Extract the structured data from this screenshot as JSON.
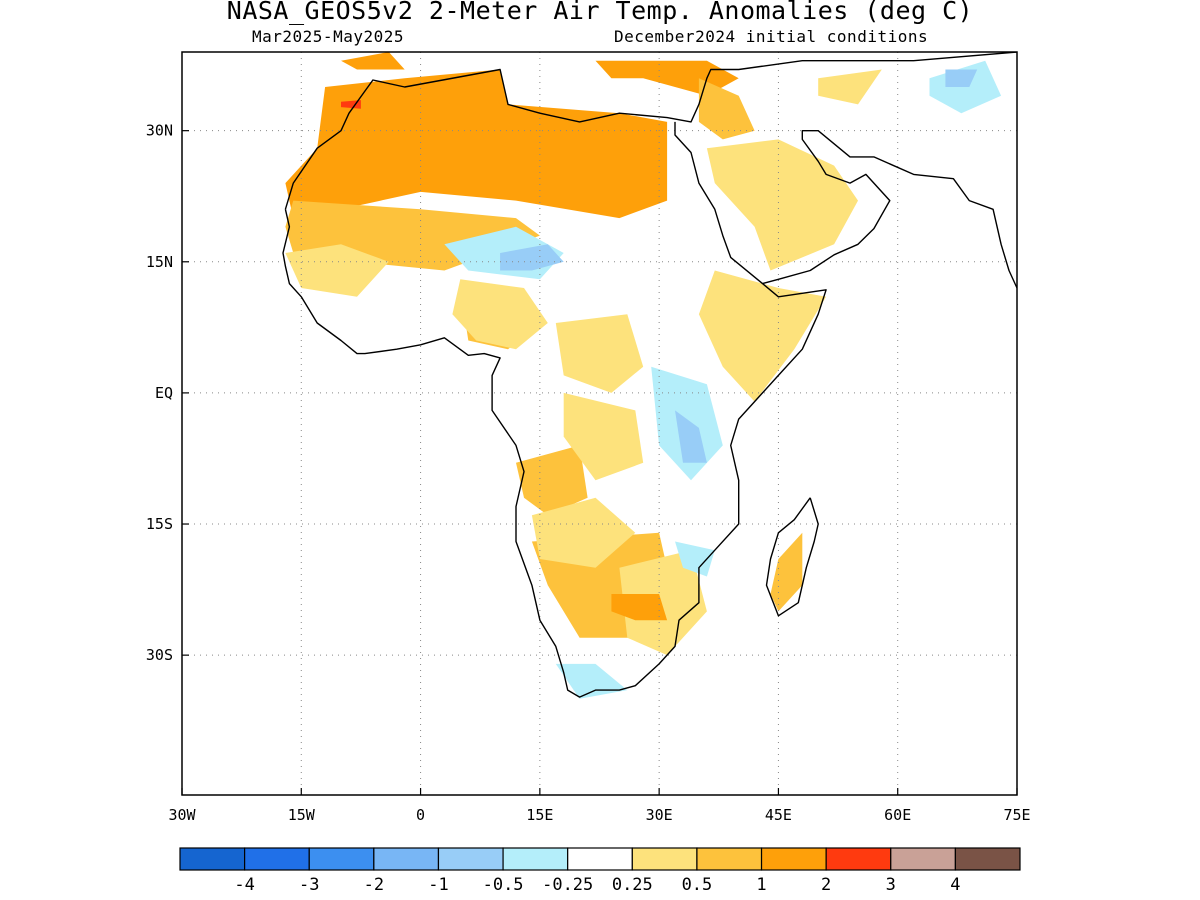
{
  "header": {
    "title": "NASA_GEOS5v2 2-Meter Air Temp. Anomalies (deg C)",
    "period": "Mar2025-May2025",
    "init": "December2024 initial conditions"
  },
  "map": {
    "lon_range": [
      -30,
      75
    ],
    "lat_range": [
      -46,
      39
    ],
    "x_ticks": [
      {
        "lon": -30,
        "label": "30W"
      },
      {
        "lon": -15,
        "label": "15W"
      },
      {
        "lon": 0,
        "label": "0"
      },
      {
        "lon": 15,
        "label": "15E"
      },
      {
        "lon": 30,
        "label": "30E"
      },
      {
        "lon": 45,
        "label": "45E"
      },
      {
        "lon": 60,
        "label": "60E"
      },
      {
        "lon": 75,
        "label": "75E"
      }
    ],
    "y_ticks": [
      {
        "lat": 30,
        "label": "30N"
      },
      {
        "lat": 15,
        "label": "15N"
      },
      {
        "lat": 0,
        "label": "EQ"
      },
      {
        "lat": -15,
        "label": "15S"
      },
      {
        "lat": -30,
        "label": "30S"
      }
    ],
    "grid": "dotted"
  },
  "colorbar": {
    "colors": [
      "#1565d0",
      "#2070e8",
      "#3c8ff0",
      "#78b6f5",
      "#98cdf7",
      "#b4eefa",
      "#ffffff",
      "#fde27c",
      "#fdc23c",
      "#fea00a",
      "#ff3a0f",
      "#c9a197",
      "#7a5346"
    ],
    "labels": [
      "-4",
      "-3",
      "-2",
      "-1",
      "-0.5",
      "-0.25",
      "0.25",
      "0.5",
      "1",
      "2",
      "3",
      "4"
    ]
  },
  "regions": [
    {
      "level": 2,
      "color": "#fea00a",
      "points": [
        [
          -12,
          35
        ],
        [
          -2,
          36
        ],
        [
          10,
          37
        ],
        [
          11,
          33
        ],
        [
          25,
          32
        ],
        [
          31,
          31
        ],
        [
          31,
          22
        ],
        [
          25,
          20
        ],
        [
          12,
          22
        ],
        [
          0,
          23
        ],
        [
          -10,
          21
        ],
        [
          -16,
          20
        ],
        [
          -17,
          24
        ],
        [
          -13,
          28
        ]
      ]
    },
    {
      "level": 2,
      "color": "#fea00a",
      "points": [
        [
          -10,
          38
        ],
        [
          -4,
          39
        ],
        [
          -2,
          37
        ],
        [
          -8,
          37
        ]
      ]
    },
    {
      "level": 2,
      "color": "#fea00a",
      "points": [
        [
          22,
          38
        ],
        [
          36,
          38
        ],
        [
          40,
          36
        ],
        [
          36,
          34
        ],
        [
          28,
          36
        ],
        [
          24,
          36
        ]
      ]
    },
    {
      "level": 1,
      "color": "#fdc23c",
      "points": [
        [
          -16,
          22
        ],
        [
          0,
          21
        ],
        [
          12,
          20
        ],
        [
          15,
          18
        ],
        [
          3,
          14
        ],
        [
          -8,
          15
        ],
        [
          -16,
          16
        ],
        [
          -17,
          19
        ]
      ]
    },
    {
      "level": 1,
      "color": "#fdc23c",
      "points": [
        [
          35,
          36
        ],
        [
          40,
          34
        ],
        [
          42,
          30
        ],
        [
          38,
          29
        ],
        [
          35,
          31
        ]
      ]
    },
    {
      "level": 1,
      "color": "#fdc23c",
      "points": [
        [
          5,
          12
        ],
        [
          13,
          11
        ],
        [
          15,
          8
        ],
        [
          11,
          5
        ],
        [
          6,
          6
        ]
      ]
    },
    {
      "level": 1,
      "color": "#fdc23c",
      "points": [
        [
          12,
          -8
        ],
        [
          20,
          -6
        ],
        [
          21,
          -12
        ],
        [
          16,
          -14
        ],
        [
          13,
          -12
        ]
      ]
    },
    {
      "level": 1,
      "color": "#fdc23c",
      "points": [
        [
          14,
          -17
        ],
        [
          30,
          -16
        ],
        [
          32,
          -24
        ],
        [
          28,
          -28
        ],
        [
          20,
          -28
        ],
        [
          16,
          -22
        ]
      ]
    },
    {
      "level": 1,
      "color": "#fdc23c",
      "points": [
        [
          45,
          -19
        ],
        [
          48,
          -16
        ],
        [
          48,
          -22
        ],
        [
          45,
          -25
        ],
        [
          44,
          -23
        ]
      ]
    },
    {
      "level": 0.5,
      "color": "#fde27c",
      "points": [
        [
          36,
          28
        ],
        [
          45,
          29
        ],
        [
          52,
          26
        ],
        [
          55,
          22
        ],
        [
          52,
          17
        ],
        [
          44,
          14
        ],
        [
          42,
          19
        ],
        [
          37,
          24
        ]
      ]
    },
    {
      "level": 0.5,
      "color": "#fde27c",
      "points": [
        [
          37,
          14
        ],
        [
          45,
          12
        ],
        [
          51,
          11
        ],
        [
          47,
          5
        ],
        [
          42,
          -1
        ],
        [
          38,
          3
        ],
        [
          35,
          9
        ]
      ]
    },
    {
      "level": 0.5,
      "color": "#fde27c",
      "points": [
        [
          17,
          8
        ],
        [
          26,
          9
        ],
        [
          28,
          3
        ],
        [
          24,
          0
        ],
        [
          18,
          2
        ]
      ]
    },
    {
      "level": 0.5,
      "color": "#fde27c",
      "points": [
        [
          18,
          0
        ],
        [
          27,
          -2
        ],
        [
          28,
          -8
        ],
        [
          22,
          -10
        ],
        [
          18,
          -5
        ]
      ]
    },
    {
      "level": 0.5,
      "color": "#fde27c",
      "points": [
        [
          14,
          -14
        ],
        [
          22,
          -12
        ],
        [
          27,
          -16
        ],
        [
          22,
          -20
        ],
        [
          15,
          -19
        ]
      ]
    },
    {
      "level": 0.5,
      "color": "#fde27c",
      "points": [
        [
          25,
          -20
        ],
        [
          34,
          -18
        ],
        [
          36,
          -25
        ],
        [
          31,
          -30
        ],
        [
          26,
          -28
        ]
      ]
    },
    {
      "level": 0.5,
      "color": "#fde27c",
      "points": [
        [
          -17,
          16
        ],
        [
          -10,
          17
        ],
        [
          -4,
          15
        ],
        [
          -8,
          11
        ],
        [
          -15,
          12
        ]
      ]
    },
    {
      "level": 0.5,
      "color": "#fde27c",
      "points": [
        [
          5,
          13
        ],
        [
          13,
          12
        ],
        [
          16,
          8
        ],
        [
          12,
          5
        ],
        [
          7,
          6
        ],
        [
          4,
          9
        ]
      ]
    },
    {
      "level": 0.5,
      "color": "#fde27c",
      "points": [
        [
          50,
          36
        ],
        [
          58,
          37
        ],
        [
          55,
          33
        ],
        [
          50,
          34
        ]
      ]
    },
    {
      "level": -0.25,
      "color": "#b4eefa",
      "points": [
        [
          3,
          17
        ],
        [
          12,
          19
        ],
        [
          18,
          16
        ],
        [
          15,
          13
        ],
        [
          6,
          14
        ]
      ]
    },
    {
      "level": -0.25,
      "color": "#b4eefa",
      "points": [
        [
          29,
          3
        ],
        [
          36,
          1
        ],
        [
          38,
          -6
        ],
        [
          34,
          -10
        ],
        [
          30,
          -6
        ]
      ]
    },
    {
      "level": -0.25,
      "color": "#b4eefa",
      "points": [
        [
          17,
          -31
        ],
        [
          22,
          -31
        ],
        [
          26,
          -34
        ],
        [
          20,
          -35
        ]
      ]
    },
    {
      "level": -0.25,
      "color": "#b4eefa",
      "points": [
        [
          64,
          36
        ],
        [
          71,
          38
        ],
        [
          73,
          34
        ],
        [
          68,
          32
        ],
        [
          64,
          34
        ]
      ]
    },
    {
      "level": -0.25,
      "color": "#b4eefa",
      "points": [
        [
          32,
          -17
        ],
        [
          37,
          -18
        ],
        [
          36,
          -21
        ],
        [
          33,
          -20
        ]
      ]
    },
    {
      "level": -0.5,
      "color": "#98cdf7",
      "points": [
        [
          10,
          16
        ],
        [
          16,
          17
        ],
        [
          18,
          15
        ],
        [
          14,
          14
        ],
        [
          10,
          14
        ]
      ]
    },
    {
      "level": -0.5,
      "color": "#98cdf7",
      "points": [
        [
          32,
          -2
        ],
        [
          35,
          -4
        ],
        [
          36,
          -8
        ],
        [
          33,
          -8
        ]
      ]
    },
    {
      "level": -0.5,
      "color": "#98cdf7",
      "points": [
        [
          66,
          37
        ],
        [
          70,
          37
        ],
        [
          69,
          35
        ],
        [
          66,
          35
        ]
      ]
    },
    {
      "level": 2,
      "color": "#fea00a",
      "points": [
        [
          24,
          -23
        ],
        [
          30,
          -23
        ],
        [
          31,
          -26
        ],
        [
          27,
          -26
        ],
        [
          24,
          -25
        ]
      ]
    },
    {
      "level": 3,
      "color": "#ff3a0f",
      "points": [
        [
          -10,
          33.3
        ],
        [
          -7.5,
          33.5
        ],
        [
          -7.5,
          32.5
        ],
        [
          -10,
          32.7
        ]
      ]
    }
  ],
  "outlines": {
    "coast": [
      [
        -17,
        21
      ],
      [
        -16,
        24
      ],
      [
        -13,
        28
      ],
      [
        -10,
        30
      ],
      [
        -9,
        32
      ],
      [
        -6,
        35.8
      ],
      [
        -2,
        35
      ],
      [
        10,
        37
      ],
      [
        11,
        33
      ],
      [
        15,
        32
      ],
      [
        20,
        31
      ],
      [
        25,
        32
      ],
      [
        31,
        31.5
      ],
      [
        34,
        31
      ],
      [
        35,
        33
      ],
      [
        36,
        36
      ],
      [
        36.5,
        37
      ],
      [
        40,
        37
      ],
      [
        48,
        38
      ],
      [
        55,
        38
      ],
      [
        62,
        38
      ],
      [
        75,
        39
      ]
    ],
    "coast2": [
      [
        32,
        31
      ],
      [
        32,
        29.5
      ],
      [
        34,
        27.5
      ],
      [
        35,
        24
      ],
      [
        37,
        21
      ],
      [
        38,
        18
      ],
      [
        39,
        15.5
      ],
      [
        43,
        12.5
      ],
      [
        45,
        11
      ],
      [
        51,
        11.8
      ],
      [
        50,
        9
      ],
      [
        48,
        5
      ],
      [
        45,
        2
      ],
      [
        42,
        -1
      ],
      [
        40,
        -3
      ],
      [
        39,
        -6
      ],
      [
        40,
        -10
      ],
      [
        40,
        -15
      ],
      [
        37,
        -18
      ],
      [
        35,
        -20
      ],
      [
        35,
        -24
      ],
      [
        32.5,
        -26
      ],
      [
        32,
        -29
      ],
      [
        30,
        -31
      ],
      [
        27,
        -33.5
      ],
      [
        25,
        -34
      ],
      [
        22,
        -34
      ],
      [
        20,
        -34.8
      ],
      [
        18.5,
        -34
      ],
      [
        18,
        -32
      ],
      [
        17,
        -29
      ],
      [
        15,
        -26
      ],
      [
        14,
        -22
      ],
      [
        12,
        -17
      ],
      [
        12,
        -13
      ],
      [
        13,
        -9
      ],
      [
        12,
        -6
      ],
      [
        9,
        -2
      ],
      [
        9,
        2
      ],
      [
        10,
        4
      ],
      [
        8,
        4.5
      ],
      [
        6,
        4.3
      ],
      [
        3,
        6.3
      ],
      [
        0,
        5.5
      ],
      [
        -3,
        5
      ],
      [
        -7,
        4.5
      ],
      [
        -8,
        4.5
      ],
      [
        -10,
        6
      ],
      [
        -13,
        8
      ],
      [
        -15,
        11
      ],
      [
        -16.5,
        12.5
      ],
      [
        -17,
        14.5
      ],
      [
        -17.3,
        16
      ],
      [
        -16.5,
        19
      ],
      [
        -17,
        21
      ]
    ],
    "arabia": [
      [
        43,
        12.5
      ],
      [
        45,
        13
      ],
      [
        49,
        14
      ],
      [
        52,
        15.8
      ],
      [
        55,
        17
      ],
      [
        57,
        18.8
      ],
      [
        59,
        22
      ],
      [
        56,
        25
      ],
      [
        54,
        24
      ],
      [
        51,
        25
      ],
      [
        50,
        26.5
      ],
      [
        48,
        29
      ],
      [
        48,
        30
      ],
      [
        50,
        30
      ],
      [
        54,
        27
      ],
      [
        57,
        27
      ],
      [
        62,
        25
      ],
      [
        67,
        24.5
      ],
      [
        69,
        22
      ],
      [
        72,
        21
      ],
      [
        73,
        17
      ],
      [
        74,
        14
      ],
      [
        75,
        12
      ]
    ],
    "madagascar": [
      [
        49,
        -12
      ],
      [
        50,
        -15
      ],
      [
        49.5,
        -17
      ],
      [
        48.5,
        -20
      ],
      [
        47.5,
        -24
      ],
      [
        45,
        -25.5
      ],
      [
        43.5,
        -22
      ],
      [
        44,
        -19
      ],
      [
        45,
        -16
      ],
      [
        47,
        -14.5
      ],
      [
        49,
        -12
      ]
    ]
  }
}
